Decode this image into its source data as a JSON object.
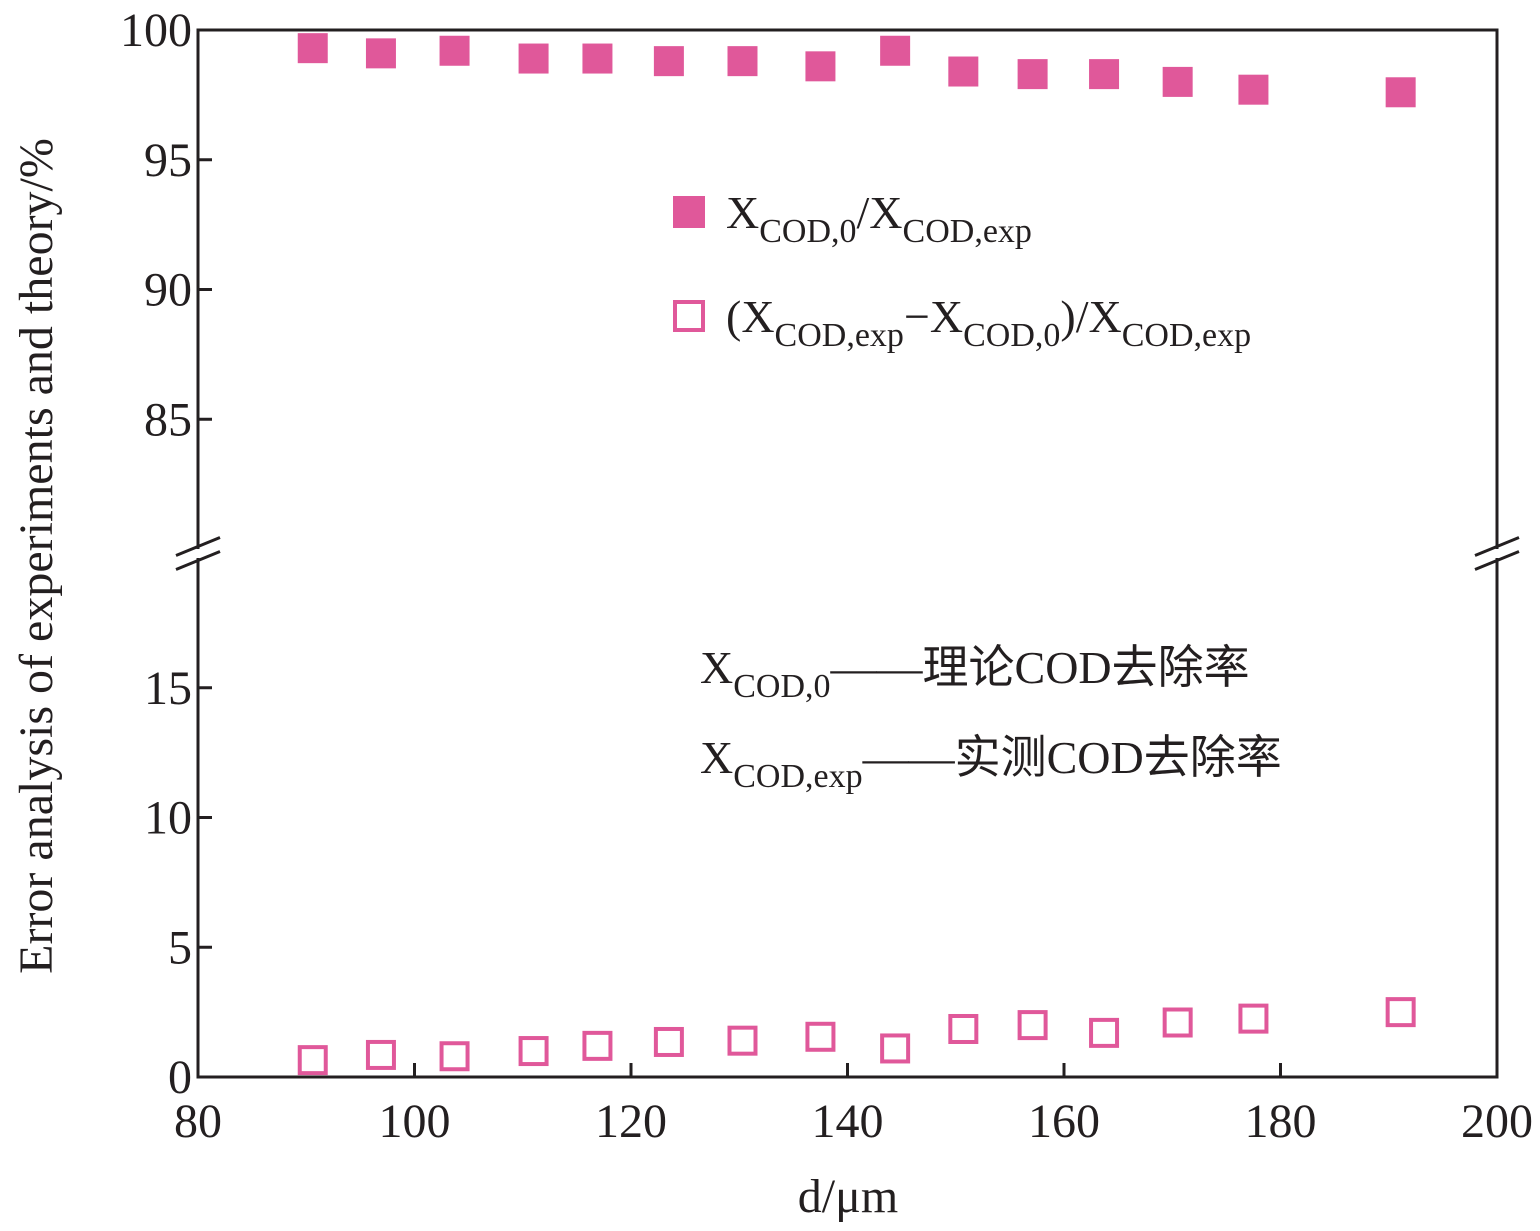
{
  "chart_data": {
    "type": "scatter",
    "x_label": "d/μm",
    "y_label": "Error analysis of experiments and theory/%",
    "x": [
      90.6,
      96.9,
      103.7,
      111.0,
      116.9,
      123.5,
      130.3,
      137.5,
      144.4,
      150.7,
      157.1,
      163.7,
      170.5,
      177.5,
      191.1
    ],
    "series": [
      {
        "name": [
          "X",
          "COD,0",
          "/X",
          "COD,exp"
        ],
        "color": "#e0589a",
        "marker": "filled-square",
        "values": [
          99.3,
          99.1,
          99.2,
          98.9,
          98.9,
          98.8,
          98.8,
          98.6,
          99.2,
          98.4,
          98.3,
          98.3,
          98.0,
          97.7,
          97.6
        ]
      },
      {
        "name": [
          "(X",
          "COD,exp",
          "−X",
          "COD,0",
          ")/X",
          "COD,exp"
        ],
        "color": "#e0589a",
        "marker": "open-square",
        "values": [
          0.65,
          0.85,
          0.8,
          1.0,
          1.2,
          1.35,
          1.4,
          1.55,
          1.1,
          1.85,
          2.0,
          1.7,
          2.1,
          2.25,
          2.5
        ]
      }
    ],
    "xlim": [
      80,
      200
    ],
    "xticks": [
      80,
      100,
      120,
      140,
      160,
      180,
      200
    ],
    "ylim": [
      0,
      100
    ],
    "ybreak": [
      20,
      80
    ],
    "yticks": [
      0,
      5,
      10,
      15,
      85,
      90,
      95,
      100
    ],
    "annotations": [
      [
        "X",
        "COD,0",
        "——理论COD去除率"
      ],
      [
        "X",
        "COD,exp",
        "——实测COD去除率"
      ]
    ]
  }
}
